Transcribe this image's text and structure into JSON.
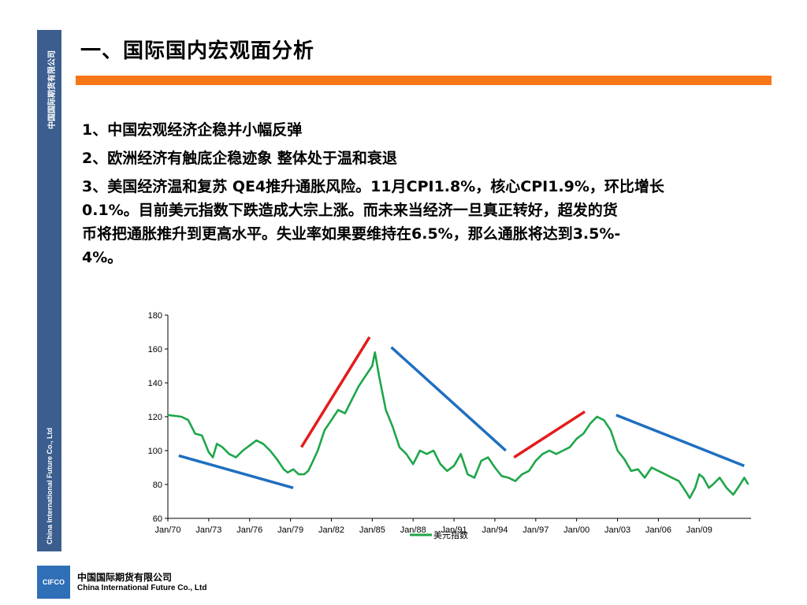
{
  "side": {
    "company_cn": "中国国际期货有限公司",
    "company_en": "China International Future Co., Ltd"
  },
  "title": "一、国际国内宏观面分析",
  "bullets": [
    "1、中国宏观经济企稳并小幅反弹",
    "2、欧洲经济有触底企稳迹象  整体处于温和衰退",
    "3、美国经济温和复苏  QE4推升通胀风险。11月CPI1.8%，核心CPI1.9%，环比增长0.1%。目前美元指数下跌造成大宗上涨。而未来当经济一旦真正转好，超发的货币将把通胀推升到更高水平。失业率如果要维持在6.5%，那么通胀将达到3.5%-4%。"
  ],
  "bullet3_lines": [
    "3、美国经济温和复苏  QE4推升通胀风险。11月CPI1.8%，核心CPI1.9%，环比增长",
    "0.1%。目前美元指数下跌造成大宗上涨。而未来当经济一旦真正转好，超发的货",
    "币将把通胀推升到更高水平。失业率如果要维持在6.5%，那么通胀将达到3.5%-",
    "4%。"
  ],
  "colors": {
    "series": "#1ea64a",
    "trend_up": "#e41b1b",
    "trend_down": "#1f6fc0",
    "side_bar": "#3b5e8f",
    "title_rule": "#f77617"
  },
  "chart_data": {
    "type": "line",
    "title": "",
    "xlabel": "",
    "ylabel": "",
    "ylim": [
      60,
      180
    ],
    "yticks": [
      60,
      80,
      100,
      120,
      140,
      160,
      180
    ],
    "xlim": [
      1970,
      2012.8
    ],
    "xticks": [
      {
        "x": 1970,
        "label": "Jan/70"
      },
      {
        "x": 1973,
        "label": "Jan/73"
      },
      {
        "x": 1976,
        "label": "Jan/76"
      },
      {
        "x": 1979,
        "label": "Jan/79"
      },
      {
        "x": 1982,
        "label": "Jan/82"
      },
      {
        "x": 1985,
        "label": "Jan/85"
      },
      {
        "x": 1988,
        "label": "Jan/88"
      },
      {
        "x": 1991,
        "label": "Jan/91"
      },
      {
        "x": 1994,
        "label": "Jan/94"
      },
      {
        "x": 1997,
        "label": "Jan/97"
      },
      {
        "x": 2000,
        "label": "Jan/00"
      },
      {
        "x": 2003,
        "label": "Jan/03"
      },
      {
        "x": 2006,
        "label": "Jan/06"
      },
      {
        "x": 2009,
        "label": "Jan/09"
      }
    ],
    "legend": {
      "label": "美元指数",
      "position": "bottom"
    },
    "grid": false,
    "series": [
      {
        "name": "美元指数",
        "x": [
          1970.0,
          1971.0,
          1971.5,
          1972.0,
          1972.5,
          1973.0,
          1973.3,
          1973.6,
          1974.0,
          1974.5,
          1975.0,
          1975.5,
          1976.0,
          1976.5,
          1977.0,
          1977.5,
          1978.0,
          1978.5,
          1978.8,
          1979.2,
          1979.6,
          1980.0,
          1980.3,
          1980.6,
          1981.0,
          1981.5,
          1982.0,
          1982.5,
          1983.0,
          1983.5,
          1984.0,
          1984.5,
          1985.0,
          1985.2,
          1985.5,
          1986.0,
          1986.5,
          1987.0,
          1987.5,
          1988.0,
          1988.5,
          1989.0,
          1989.5,
          1990.0,
          1990.5,
          1991.0,
          1991.5,
          1992.0,
          1992.5,
          1993.0,
          1993.5,
          1994.0,
          1994.5,
          1995.0,
          1995.5,
          1996.0,
          1996.5,
          1997.0,
          1997.5,
          1998.0,
          1998.5,
          1999.0,
          1999.5,
          2000.0,
          2000.5,
          2001.0,
          2001.5,
          2002.0,
          2002.5,
          2003.0,
          2003.5,
          2004.0,
          2004.5,
          2005.0,
          2005.5,
          2006.0,
          2006.5,
          2007.0,
          2007.5,
          2008.0,
          2008.3,
          2008.7,
          2009.0,
          2009.3,
          2009.7,
          2010.0,
          2010.5,
          2011.0,
          2011.5,
          2012.0,
          2012.3,
          2012.6
        ],
        "values": [
          121,
          120,
          118,
          110,
          109,
          99,
          96,
          104,
          102,
          98,
          96,
          100,
          103,
          106,
          104,
          100,
          95,
          89,
          87,
          89,
          86,
          86,
          88,
          93,
          100,
          112,
          118,
          124,
          122,
          130,
          138,
          144,
          150,
          158,
          144,
          124,
          114,
          102,
          98,
          92,
          100,
          98,
          100,
          92,
          88,
          91,
          98,
          86,
          84,
          94,
          96,
          90,
          85,
          84,
          82,
          86,
          88,
          94,
          98,
          100,
          98,
          100,
          102,
          107,
          110,
          116,
          120,
          118,
          112,
          100,
          95,
          88,
          89,
          84,
          90,
          88,
          86,
          84,
          82,
          76,
          72,
          78,
          86,
          84,
          78,
          80,
          84,
          78,
          74,
          80,
          84,
          80
        ]
      }
    ],
    "trendlines": [
      {
        "kind": "down",
        "x": [
          1970.8,
          1979.2
        ],
        "y": [
          97,
          78
        ]
      },
      {
        "kind": "up",
        "x": [
          1979.8,
          1984.8
        ],
        "y": [
          102,
          167
        ]
      },
      {
        "kind": "down",
        "x": [
          1986.4,
          1994.8
        ],
        "y": [
          161,
          100
        ]
      },
      {
        "kind": "up",
        "x": [
          1995.4,
          2000.6
        ],
        "y": [
          96,
          123
        ]
      },
      {
        "kind": "down",
        "x": [
          2002.9,
          2012.3
        ],
        "y": [
          121,
          91
        ]
      }
    ]
  },
  "footer": {
    "logo": "CIFCO",
    "company_cn": "中国国际期货有限公司",
    "company_en": "China International Future Co., Ltd"
  }
}
